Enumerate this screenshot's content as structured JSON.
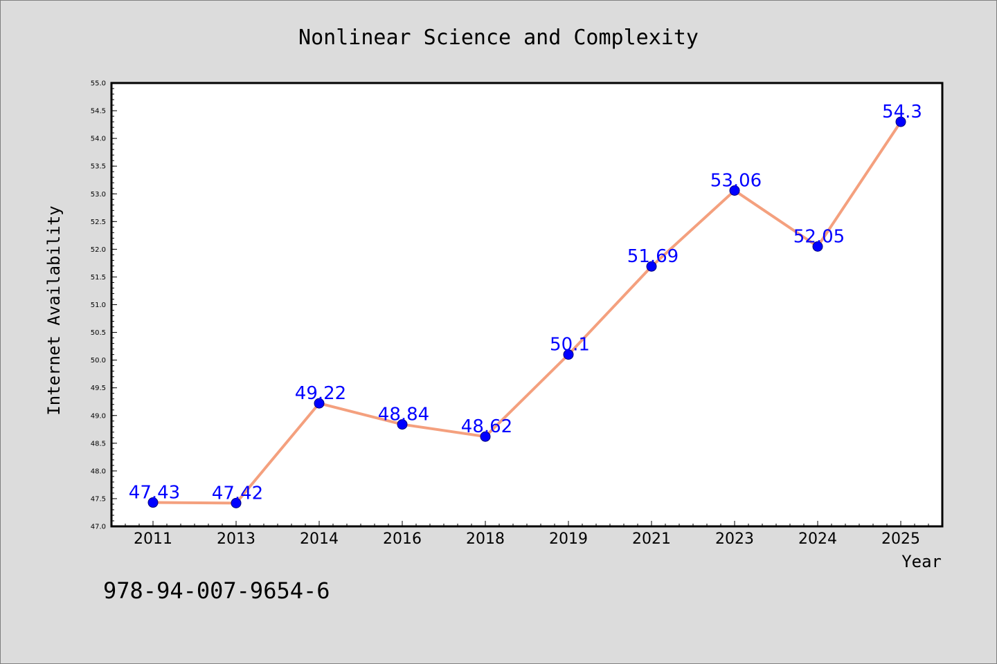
{
  "chart_data": {
    "type": "line",
    "title": "Nonlinear Science and Complexity",
    "xlabel": "Year",
    "ylabel": "Internet Availability",
    "categories": [
      "2011",
      "2013",
      "2014",
      "2016",
      "2018",
      "2019",
      "2021",
      "2023",
      "2024",
      "2025"
    ],
    "series": [
      {
        "values": [
          47.43,
          47.42,
          49.22,
          48.84,
          48.62,
          50.1,
          51.69,
          53.06,
          52.05,
          54.3
        ],
        "labels": [
          "47.43",
          "47.42",
          "49.22",
          "48.84",
          "48.62",
          "50.1",
          "51.69",
          "53.06",
          "52.05",
          "54.3"
        ],
        "line_color": "#f4a07e",
        "marker_color": "#0000ff"
      }
    ],
    "ylim": [
      47.0,
      55.0
    ],
    "yticks": [
      "47.0",
      "47.5",
      "48.0",
      "48.5",
      "49.0",
      "49.5",
      "50.0",
      "50.5",
      "51.0",
      "51.5",
      "52.0",
      "52.5",
      "53.0",
      "53.5",
      "54.0",
      "54.5",
      "55.0"
    ],
    "grid": false,
    "data_label_color": "#0000ff"
  },
  "footer": {
    "isbn": "978-94-007-9654-6"
  },
  "colors": {
    "background": "#dcdcdc",
    "plot_area": "#ffffff"
  }
}
